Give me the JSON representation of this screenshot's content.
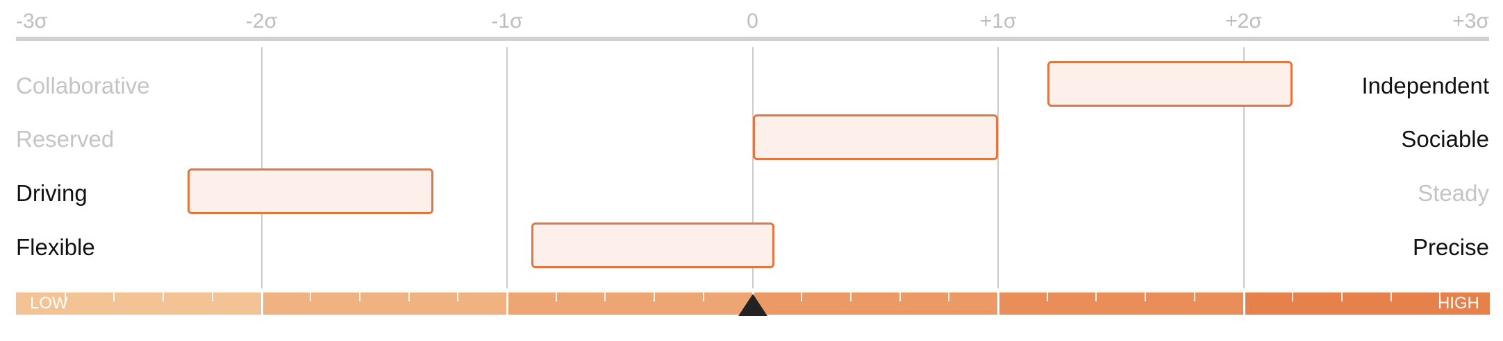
{
  "axis": {
    "ticks": [
      "-3σ",
      "-2σ",
      "-1σ",
      "0",
      "+1σ",
      "+2σ",
      "+3σ"
    ],
    "min_sigma": -3,
    "max_sigma": 3
  },
  "traits": [
    {
      "left": "Collaborative",
      "right": "Independent",
      "range": [
        1.2,
        2.2
      ],
      "emphasis": "right"
    },
    {
      "left": "Reserved",
      "right": "Sociable",
      "range": [
        0.0,
        1.0
      ],
      "emphasis": "right"
    },
    {
      "left": "Driving",
      "right": "Steady",
      "range": [
        -2.3,
        -1.3
      ],
      "emphasis": "left"
    },
    {
      "left": "Flexible",
      "right": "Precise",
      "range": [
        -0.9,
        0.09
      ],
      "emphasis": "both"
    }
  ],
  "scale": {
    "low_label": "LOW",
    "high_label": "HIGH",
    "marker_sigma": 0,
    "colors": [
      "#f3c396",
      "#f0b281",
      "#eda673",
      "#eb9a66",
      "#e98e59",
      "#e7814c"
    ]
  },
  "colors": {
    "accent": "#e27640",
    "box_fill": "#fdf0ea",
    "dim_text": "#c4c4c4",
    "strong_text": "#111111"
  }
}
